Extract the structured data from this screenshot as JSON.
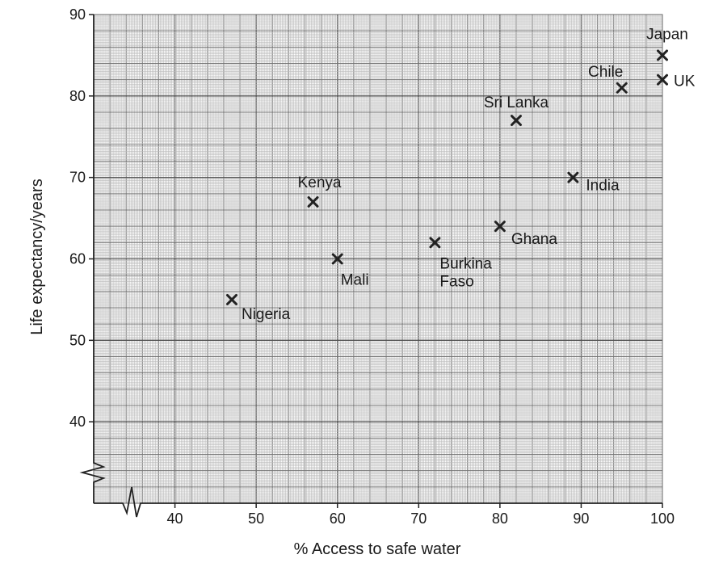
{
  "chart_data": {
    "type": "scatter",
    "title": "",
    "xlabel": "% Access to safe water",
    "ylabel": "Life expectancy/years",
    "xlim": [
      30,
      100
    ],
    "ylim": [
      30,
      90
    ],
    "x_ticks": [
      40,
      50,
      60,
      70,
      80,
      90,
      100
    ],
    "y_ticks": [
      40,
      50,
      60,
      70,
      80,
      90
    ],
    "axis_breaks": [
      "x",
      "y"
    ],
    "grid": true,
    "marker": "cross",
    "points": [
      {
        "label": "Japan",
        "x": 100,
        "y": 85
      },
      {
        "label": "UK",
        "x": 100,
        "y": 82
      },
      {
        "label": "Chile",
        "x": 95,
        "y": 81
      },
      {
        "label": "Sri Lanka",
        "x": 82,
        "y": 77
      },
      {
        "label": "India",
        "x": 89,
        "y": 70
      },
      {
        "label": "Kenya",
        "x": 57,
        "y": 67
      },
      {
        "label": "Ghana",
        "x": 80,
        "y": 64
      },
      {
        "label": "Burkina Faso",
        "x": 72,
        "y": 62
      },
      {
        "label": "Mali",
        "x": 60,
        "y": 60
      },
      {
        "label": "Nigeria",
        "x": 47,
        "y": 55
      }
    ]
  }
}
